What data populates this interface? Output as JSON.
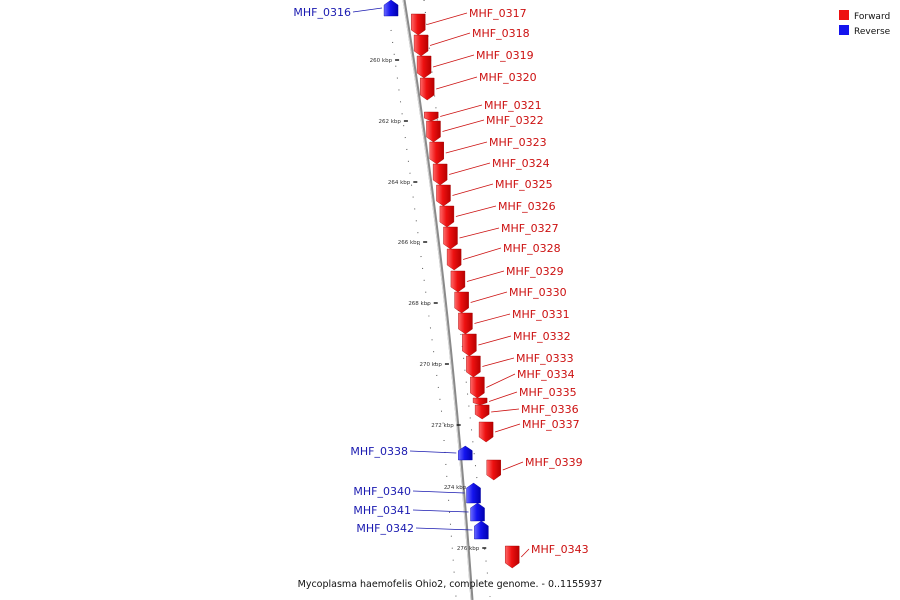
{
  "colors": {
    "forward": "#ee1111",
    "reverse": "#1414ee",
    "forward_label": "#cc1111",
    "reverse_label": "#1a1ab0",
    "backbone": "#888888"
  },
  "legend": [
    {
      "label": "Forward",
      "color": "#ee1111"
    },
    {
      "label": "Reverse",
      "color": "#1414ee"
    }
  ],
  "caption": "Mycoplasma haemofelis Ohio2, complete genome. - 0..1155937",
  "ticks": [
    "260 kbp",
    "262 kbp",
    "264 kbp",
    "266 kbp",
    "268 kbp",
    "270 kbp",
    "272 kbp",
    "274 kbp",
    "276 kbp"
  ],
  "genes": [
    {
      "name": "MHF_0316",
      "strand": "reverse"
    },
    {
      "name": "MHF_0317",
      "strand": "forward"
    },
    {
      "name": "MHF_0318",
      "strand": "forward"
    },
    {
      "name": "MHF_0319",
      "strand": "forward"
    },
    {
      "name": "MHF_0320",
      "strand": "forward"
    },
    {
      "name": "MHF_0321",
      "strand": "forward"
    },
    {
      "name": "MHF_0322",
      "strand": "forward"
    },
    {
      "name": "MHF_0323",
      "strand": "forward"
    },
    {
      "name": "MHF_0324",
      "strand": "forward"
    },
    {
      "name": "MHF_0325",
      "strand": "forward"
    },
    {
      "name": "MHF_0326",
      "strand": "forward"
    },
    {
      "name": "MHF_0327",
      "strand": "forward"
    },
    {
      "name": "MHF_0328",
      "strand": "forward"
    },
    {
      "name": "MHF_0329",
      "strand": "forward"
    },
    {
      "name": "MHF_0330",
      "strand": "forward"
    },
    {
      "name": "MHF_0331",
      "strand": "forward"
    },
    {
      "name": "MHF_0332",
      "strand": "forward"
    },
    {
      "name": "MHF_0333",
      "strand": "forward"
    },
    {
      "name": "MHF_0334",
      "strand": "forward"
    },
    {
      "name": "MHF_0335",
      "strand": "forward"
    },
    {
      "name": "MHF_0336",
      "strand": "forward"
    },
    {
      "name": "MHF_0337",
      "strand": "forward"
    },
    {
      "name": "MHF_0338",
      "strand": "reverse"
    },
    {
      "name": "MHF_0339",
      "strand": "forward"
    },
    {
      "name": "MHF_0340",
      "strand": "reverse"
    },
    {
      "name": "MHF_0341",
      "strand": "reverse"
    },
    {
      "name": "MHF_0342",
      "strand": "reverse"
    },
    {
      "name": "MHF_0343",
      "strand": "forward"
    }
  ]
}
